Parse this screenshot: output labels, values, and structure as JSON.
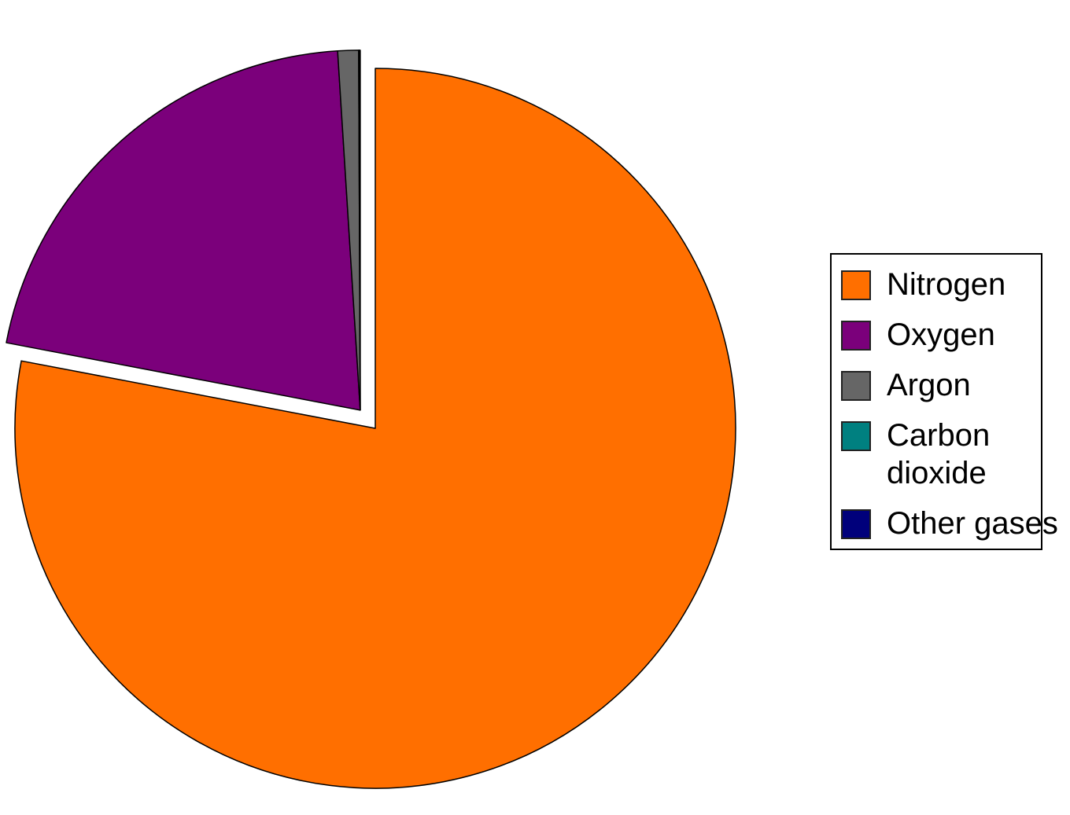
{
  "chart_data": {
    "type": "pie",
    "title": "",
    "start_angle_deg": 0,
    "direction": "clockwise",
    "slices": [
      {
        "label": "Nitrogen",
        "value": 78,
        "color": "#ff6f00",
        "exploded": false
      },
      {
        "label": "Oxygen",
        "value": 21,
        "color": "#7b007b",
        "exploded": true
      },
      {
        "label": "Argon",
        "value": 0.93,
        "color": "#666666",
        "exploded": true
      },
      {
        "label": "Carbon dioxide",
        "value": 0.04,
        "color": "#008080",
        "exploded": true
      },
      {
        "label": "Other gases",
        "value": 0.03,
        "color": "#00007b",
        "exploded": true
      }
    ],
    "legend": {
      "position": "right",
      "items": [
        "Nitrogen",
        "Oxygen",
        "Argon",
        "Carbon dioxide",
        "Other gases"
      ]
    }
  }
}
